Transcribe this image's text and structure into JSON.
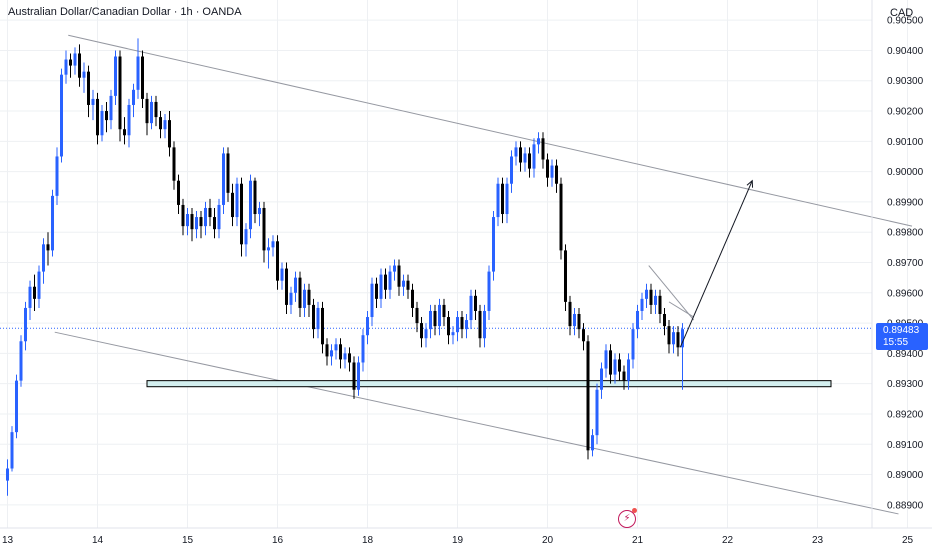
{
  "header": {
    "title": "Australian Dollar/Canadian Dollar · 1h · OANDA",
    "currency": "CAD"
  },
  "price_badge": {
    "price": "0.89483",
    "countdown": "15:55"
  },
  "flash_icon": "lightning-icon",
  "colors": {
    "up": "#2962ff",
    "down": "#000000",
    "grid": "#eef0f3",
    "trendline": "#9598a1",
    "zone_fill": "#d3efef",
    "zone_border": "#000000",
    "badge": "#2962ff",
    "flash": "#c2185b"
  },
  "chart_data": {
    "type": "candlestick",
    "symbol": "Australian Dollar/Canadian Dollar",
    "interval": "1h",
    "ylim": [
      0.8885,
      0.9055
    ],
    "y_ticks": [
      "0.88900",
      "0.89000",
      "0.89100",
      "0.89200",
      "0.89300",
      "0.89400",
      "0.89500",
      "0.89600",
      "0.89700",
      "0.89800",
      "0.89900",
      "0.90000",
      "0.90100",
      "0.90200",
      "0.90300",
      "0.90400",
      "0.90500"
    ],
    "y_tick_values": [
      0.889,
      0.89,
      0.891,
      0.892,
      0.893,
      0.894,
      0.895,
      0.896,
      0.897,
      0.898,
      0.899,
      0.9,
      0.901,
      0.902,
      0.903,
      0.904,
      0.905
    ],
    "x_ticks": [
      "13",
      "14",
      "15",
      "16",
      "18",
      "19",
      "20",
      "21",
      "22",
      "23",
      "25"
    ],
    "x_tick_index": [
      0,
      20,
      40,
      60,
      80,
      100,
      120,
      140,
      160,
      180,
      200
    ],
    "last_price": 0.89483,
    "candles": [
      [
        0.8898,
        0.8902,
        0.8893,
        0.8905
      ],
      [
        0.8902,
        0.8914,
        0.8901,
        0.8916
      ],
      [
        0.8914,
        0.8931,
        0.8912,
        0.8933
      ],
      [
        0.8931,
        0.8944,
        0.8929,
        0.8946
      ],
      [
        0.8944,
        0.8955,
        0.8941,
        0.8957
      ],
      [
        0.8955,
        0.8962,
        0.8951,
        0.8964
      ],
      [
        0.8962,
        0.8958,
        0.8954,
        0.8966
      ],
      [
        0.8958,
        0.8967,
        0.8955,
        0.8969
      ],
      [
        0.8967,
        0.8976,
        0.8963,
        0.8978
      ],
      [
        0.8976,
        0.8974,
        0.8969,
        0.898
      ],
      [
        0.8974,
        0.8992,
        0.8972,
        0.8994
      ],
      [
        0.8992,
        0.9005,
        0.8989,
        0.9008
      ],
      [
        0.9005,
        0.9032,
        0.9003,
        0.9034
      ],
      [
        0.9032,
        0.9037,
        0.9029,
        0.904
      ],
      [
        0.9037,
        0.9035,
        0.9031,
        0.9039
      ],
      [
        0.9035,
        0.9039,
        0.9032,
        0.9041
      ],
      [
        0.9039,
        0.9031,
        0.9028,
        0.9042
      ],
      [
        0.9031,
        0.9033,
        0.9026,
        0.9036
      ],
      [
        0.9033,
        0.9022,
        0.9018,
        0.9035
      ],
      [
        0.9022,
        0.9024,
        0.9017,
        0.9027
      ],
      [
        0.9024,
        0.9012,
        0.9009,
        0.9026
      ],
      [
        0.9012,
        0.902,
        0.901,
        0.9022
      ],
      [
        0.902,
        0.9017,
        0.9013,
        0.9023
      ],
      [
        0.9017,
        0.9025,
        0.9014,
        0.9027
      ],
      [
        0.9025,
        0.9038,
        0.9022,
        0.904
      ],
      [
        0.9038,
        0.9014,
        0.901,
        0.904
      ],
      [
        0.9014,
        0.9012,
        0.9009,
        0.9018
      ],
      [
        0.9012,
        0.9022,
        0.9008,
        0.9024
      ],
      [
        0.9022,
        0.9027,
        0.9018,
        0.9029
      ],
      [
        0.9027,
        0.9038,
        0.9024,
        0.9044
      ],
      [
        0.9038,
        0.9024,
        0.9021,
        0.904
      ],
      [
        0.9024,
        0.9016,
        0.9012,
        0.9026
      ],
      [
        0.9016,
        0.9023,
        0.9014,
        0.9025
      ],
      [
        0.9023,
        0.9018,
        0.9015,
        0.9025
      ],
      [
        0.9018,
        0.9014,
        0.9011,
        0.902
      ],
      [
        0.9014,
        0.9017,
        0.9011,
        0.9019
      ],
      [
        0.9017,
        0.9008,
        0.9005,
        0.902
      ],
      [
        0.9008,
        0.8997,
        0.8994,
        0.901
      ],
      [
        0.8997,
        0.8989,
        0.8986,
        0.8999
      ],
      [
        0.8989,
        0.8982,
        0.8979,
        0.8991
      ],
      [
        0.8982,
        0.8986,
        0.8979,
        0.8988
      ],
      [
        0.8986,
        0.8981,
        0.8977,
        0.8988
      ],
      [
        0.8981,
        0.8985,
        0.8978,
        0.8987
      ],
      [
        0.8985,
        0.8982,
        0.8978,
        0.8987
      ],
      [
        0.8982,
        0.8988,
        0.8979,
        0.899
      ],
      [
        0.8988,
        0.8985,
        0.8982,
        0.8991
      ],
      [
        0.8985,
        0.8981,
        0.8978,
        0.8988
      ],
      [
        0.8981,
        0.8989,
        0.8978,
        0.8991
      ],
      [
        0.8989,
        0.9006,
        0.8986,
        0.9008
      ],
      [
        0.9006,
        0.8993,
        0.899,
        0.9008
      ],
      [
        0.8993,
        0.8985,
        0.8982,
        0.8996
      ],
      [
        0.8985,
        0.8996,
        0.8982,
        0.8998
      ],
      [
        0.8996,
        0.8976,
        0.8972,
        0.8998
      ],
      [
        0.8976,
        0.8981,
        0.8972,
        0.8983
      ],
      [
        0.8981,
        0.8997,
        0.8978,
        0.8999
      ],
      [
        0.8997,
        0.8986,
        0.8983,
        0.8998
      ],
      [
        0.8986,
        0.8988,
        0.8982,
        0.899
      ],
      [
        0.8988,
        0.8974,
        0.897,
        0.899
      ],
      [
        0.8974,
        0.8975,
        0.8968,
        0.8978
      ],
      [
        0.8975,
        0.8977,
        0.8972,
        0.8979
      ],
      [
        0.8977,
        0.8964,
        0.8961,
        0.8979
      ],
      [
        0.8964,
        0.8968,
        0.8961,
        0.897
      ],
      [
        0.8968,
        0.8956,
        0.8953,
        0.897
      ],
      [
        0.8956,
        0.896,
        0.8953,
        0.8962
      ],
      [
        0.896,
        0.8965,
        0.8957,
        0.8967
      ],
      [
        0.8965,
        0.8955,
        0.8952,
        0.8967
      ],
      [
        0.8955,
        0.8961,
        0.8952,
        0.8963
      ],
      [
        0.8961,
        0.8956,
        0.8952,
        0.8963
      ],
      [
        0.8956,
        0.8948,
        0.8945,
        0.8958
      ],
      [
        0.8948,
        0.8955,
        0.8945,
        0.8957
      ],
      [
        0.8955,
        0.8943,
        0.894,
        0.8957
      ],
      [
        0.8943,
        0.8939,
        0.8936,
        0.8945
      ],
      [
        0.8939,
        0.8941,
        0.8936,
        0.8943
      ],
      [
        0.8941,
        0.8943,
        0.8938,
        0.8945
      ],
      [
        0.8943,
        0.8938,
        0.8935,
        0.8945
      ],
      [
        0.8938,
        0.894,
        0.8935,
        0.8942
      ],
      [
        0.894,
        0.8937,
        0.8934,
        0.8942
      ],
      [
        0.8937,
        0.8928,
        0.8925,
        0.8939
      ],
      [
        0.8928,
        0.8937,
        0.8926,
        0.8939
      ],
      [
        0.8937,
        0.8946,
        0.8934,
        0.8948
      ],
      [
        0.8946,
        0.8952,
        0.8943,
        0.8954
      ],
      [
        0.8952,
        0.8963,
        0.8949,
        0.8965
      ],
      [
        0.8963,
        0.8958,
        0.8955,
        0.8965
      ],
      [
        0.8958,
        0.8966,
        0.8955,
        0.8968
      ],
      [
        0.8966,
        0.8961,
        0.8958,
        0.8968
      ],
      [
        0.8961,
        0.8967,
        0.8958,
        0.8969
      ],
      [
        0.8967,
        0.8969,
        0.8964,
        0.8971
      ],
      [
        0.8969,
        0.8962,
        0.8959,
        0.8971
      ],
      [
        0.8962,
        0.8964,
        0.8959,
        0.8966
      ],
      [
        0.8964,
        0.8961,
        0.8958,
        0.8966
      ],
      [
        0.8961,
        0.8955,
        0.8952,
        0.8963
      ],
      [
        0.8955,
        0.895,
        0.8947,
        0.8957
      ],
      [
        0.895,
        0.8945,
        0.8942,
        0.8952
      ],
      [
        0.8945,
        0.8948,
        0.8942,
        0.895
      ],
      [
        0.8948,
        0.8954,
        0.8945,
        0.8956
      ],
      [
        0.8954,
        0.8949,
        0.8946,
        0.8956
      ],
      [
        0.8949,
        0.8956,
        0.8946,
        0.8958
      ],
      [
        0.8956,
        0.8952,
        0.8949,
        0.8958
      ],
      [
        0.8952,
        0.8946,
        0.8943,
        0.8954
      ],
      [
        0.8946,
        0.8947,
        0.8943,
        0.8949
      ],
      [
        0.8947,
        0.8952,
        0.8944,
        0.8954
      ],
      [
        0.8952,
        0.8948,
        0.8945,
        0.8954
      ],
      [
        0.8948,
        0.8951,
        0.8945,
        0.8953
      ],
      [
        0.8951,
        0.8959,
        0.8948,
        0.8961
      ],
      [
        0.8959,
        0.8954,
        0.8951,
        0.8961
      ],
      [
        0.8954,
        0.8945,
        0.8942,
        0.8956
      ],
      [
        0.8945,
        0.8954,
        0.8942,
        0.8956
      ],
      [
        0.8954,
        0.8967,
        0.8951,
        0.8969
      ],
      [
        0.8967,
        0.8985,
        0.8964,
        0.8987
      ],
      [
        0.8985,
        0.8996,
        0.8982,
        0.8998
      ],
      [
        0.8996,
        0.8986,
        0.8983,
        0.8998
      ],
      [
        0.8986,
        0.8996,
        0.8983,
        0.8998
      ],
      [
        0.8996,
        0.9005,
        0.8993,
        0.9007
      ],
      [
        0.9005,
        0.9008,
        0.9002,
        0.901
      ],
      [
        0.9008,
        0.9003,
        0.9,
        0.901
      ],
      [
        0.9003,
        0.9006,
        0.9,
        0.9008
      ],
      [
        0.9006,
        0.9001,
        0.8998,
        0.9008
      ],
      [
        0.9001,
        0.9009,
        0.8998,
        0.9011
      ],
      [
        0.9009,
        0.9011,
        0.9006,
        0.9013
      ],
      [
        0.9011,
        0.9004,
        0.9001,
        0.9013
      ],
      [
        0.9004,
        0.8998,
        0.8995,
        0.9006
      ],
      [
        0.8998,
        0.9002,
        0.8995,
        0.9004
      ],
      [
        0.9002,
        0.8996,
        0.8993,
        0.9004
      ],
      [
        0.8996,
        0.8974,
        0.8971,
        0.8998
      ],
      [
        0.8974,
        0.8957,
        0.8954,
        0.8976
      ],
      [
        0.8957,
        0.8949,
        0.8946,
        0.8959
      ],
      [
        0.8949,
        0.8953,
        0.8946,
        0.8955
      ],
      [
        0.8953,
        0.8948,
        0.8945,
        0.8955
      ],
      [
        0.8948,
        0.8944,
        0.8941,
        0.895
      ],
      [
        0.8944,
        0.8908,
        0.8905,
        0.8946
      ],
      [
        0.8908,
        0.8913,
        0.8906,
        0.8915
      ],
      [
        0.8913,
        0.8928,
        0.891,
        0.893
      ],
      [
        0.8928,
        0.8935,
        0.8925,
        0.8937
      ],
      [
        0.8935,
        0.8941,
        0.8932,
        0.8943
      ],
      [
        0.8941,
        0.8933,
        0.893,
        0.8943
      ],
      [
        0.8933,
        0.8938,
        0.893,
        0.894
      ],
      [
        0.8938,
        0.8934,
        0.8931,
        0.894
      ],
      [
        0.8934,
        0.8931,
        0.8928,
        0.8936
      ],
      [
        0.8931,
        0.8938,
        0.8928,
        0.894
      ],
      [
        0.8938,
        0.8948,
        0.8935,
        0.895
      ],
      [
        0.8948,
        0.8954,
        0.8945,
        0.8956
      ],
      [
        0.8954,
        0.8958,
        0.8951,
        0.896
      ],
      [
        0.8958,
        0.8961,
        0.8955,
        0.8963
      ],
      [
        0.8961,
        0.8956,
        0.8953,
        0.8963
      ],
      [
        0.8956,
        0.8959,
        0.8953,
        0.8961
      ],
      [
        0.8959,
        0.8953,
        0.895,
        0.8961
      ],
      [
        0.8953,
        0.8949,
        0.8946,
        0.8955
      ],
      [
        0.8949,
        0.8943,
        0.894,
        0.8951
      ],
      [
        0.8943,
        0.8947,
        0.894,
        0.8949
      ],
      [
        0.8947,
        0.8942,
        0.8939,
        0.8949
      ],
      [
        0.8942,
        0.8948,
        0.8928,
        0.895
      ]
    ],
    "annotations": {
      "channel_upper": [
        [
          13.5,
          0.9045
        ],
        [
          201,
          0.8982
        ]
      ],
      "channel_lower": [
        [
          10.5,
          0.8947
        ],
        [
          198,
          0.8887
        ]
      ],
      "support_zone": {
        "from_index": 31,
        "to_index": 183,
        "low": 0.8929,
        "high": 0.8931
      },
      "wedge_top": [
        [
          142.5,
          0.8969
        ],
        [
          152.5,
          0.8951
        ]
      ],
      "wedge_bottom": [
        [
          147,
          0.8957
        ],
        [
          152.5,
          0.8952
        ]
      ],
      "projection_arrow": [
        [
          149.5,
          0.8942
        ],
        [
          165.5,
          0.8997
        ]
      ]
    }
  }
}
